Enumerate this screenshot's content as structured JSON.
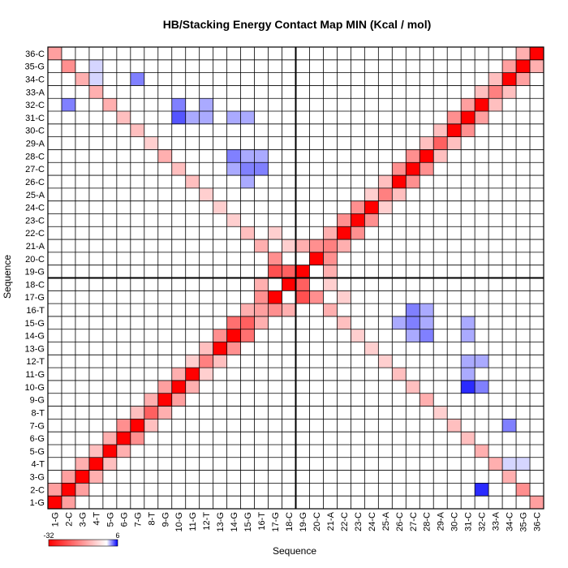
{
  "chart_data": {
    "type": "heatmap",
    "title": "HB/Stacking Energy Contact Map MIN (Kcal / mol)",
    "xlabel": "Sequence",
    "ylabel": "Sequence",
    "labels": [
      "1-G",
      "2-C",
      "3-G",
      "4-T",
      "5-G",
      "6-G",
      "7-G",
      "8-T",
      "9-G",
      "10-G",
      "11-G",
      "12-T",
      "13-G",
      "14-G",
      "15-G",
      "16-T",
      "17-G",
      "18-C",
      "19-G",
      "20-C",
      "21-A",
      "22-C",
      "23-C",
      "24-C",
      "25-A",
      "26-C",
      "27-C",
      "28-C",
      "29-A",
      "30-C",
      "31-C",
      "32-C",
      "33-A",
      "34-C",
      "35-G",
      "36-C"
    ],
    "colorbar": {
      "min": -32,
      "max": 6,
      "min_label": "-32",
      "max_label": "6",
      "low_color": "#ff0000",
      "mid_color": "#ffffff",
      "high_color": "#0000ff"
    },
    "divider_after": 18,
    "grid": true,
    "cells": [
      [
        1,
        1,
        -32
      ],
      [
        2,
        2,
        -32
      ],
      [
        3,
        3,
        -32
      ],
      [
        4,
        4,
        -32
      ],
      [
        5,
        5,
        -32
      ],
      [
        6,
        6,
        -32
      ],
      [
        7,
        7,
        -32
      ],
      [
        8,
        8,
        -20
      ],
      [
        9,
        9,
        -32
      ],
      [
        10,
        10,
        -32
      ],
      [
        11,
        11,
        -32
      ],
      [
        12,
        12,
        -16
      ],
      [
        13,
        13,
        -32
      ],
      [
        14,
        14,
        -32
      ],
      [
        15,
        15,
        -20
      ],
      [
        16,
        16,
        -12
      ],
      [
        17,
        17,
        -32
      ],
      [
        18,
        18,
        -32
      ],
      [
        19,
        19,
        -32
      ],
      [
        20,
        20,
        -32
      ],
      [
        21,
        21,
        -16
      ],
      [
        22,
        22,
        -32
      ],
      [
        23,
        23,
        -32
      ],
      [
        24,
        24,
        -32
      ],
      [
        25,
        25,
        -16
      ],
      [
        26,
        26,
        -32
      ],
      [
        27,
        27,
        -32
      ],
      [
        28,
        28,
        -32
      ],
      [
        29,
        29,
        -20
      ],
      [
        30,
        30,
        -32
      ],
      [
        31,
        31,
        -32
      ],
      [
        32,
        32,
        -32
      ],
      [
        33,
        33,
        -16
      ],
      [
        34,
        34,
        -32
      ],
      [
        35,
        35,
        -32
      ],
      [
        36,
        36,
        -32
      ],
      [
        1,
        2,
        -12
      ],
      [
        2,
        1,
        -12
      ],
      [
        1,
        36,
        -12
      ],
      [
        36,
        1,
        -12
      ],
      [
        2,
        35,
        -14
      ],
      [
        35,
        2,
        -14
      ],
      [
        3,
        34,
        -10
      ],
      [
        34,
        3,
        -10
      ],
      [
        4,
        33,
        -10
      ],
      [
        33,
        4,
        -10
      ],
      [
        5,
        32,
        -10
      ],
      [
        32,
        5,
        -10
      ],
      [
        6,
        31,
        -8
      ],
      [
        31,
        6,
        -8
      ],
      [
        7,
        30,
        -8
      ],
      [
        30,
        7,
        -8
      ],
      [
        8,
        29,
        -6
      ],
      [
        29,
        8,
        -6
      ],
      [
        9,
        28,
        -10
      ],
      [
        28,
        9,
        -10
      ],
      [
        10,
        27,
        -8
      ],
      [
        27,
        10,
        -8
      ],
      [
        11,
        26,
        -8
      ],
      [
        26,
        11,
        -8
      ],
      [
        12,
        25,
        -6
      ],
      [
        25,
        12,
        -6
      ],
      [
        13,
        24,
        -6
      ],
      [
        24,
        13,
        -6
      ],
      [
        14,
        23,
        -6
      ],
      [
        23,
        14,
        -6
      ],
      [
        17,
        20,
        -14
      ],
      [
        20,
        17,
        -14
      ],
      [
        16,
        21,
        -10
      ],
      [
        21,
        16,
        -10
      ],
      [
        15,
        22,
        -8
      ],
      [
        22,
        15,
        -8
      ],
      [
        17,
        22,
        -6
      ],
      [
        18,
        21,
        -6
      ],
      [
        21,
        18,
        -6
      ],
      [
        22,
        17,
        -6
      ],
      [
        16,
        18,
        -10
      ],
      [
        18,
        16,
        -10
      ],
      [
        19,
        21,
        -10
      ],
      [
        21,
        19,
        -10
      ],
      [
        17,
        19,
        -22
      ],
      [
        19,
        17,
        -22
      ],
      [
        16,
        17,
        -14
      ],
      [
        17,
        16,
        -14
      ],
      [
        18,
        19,
        -20
      ],
      [
        19,
        18,
        -20
      ],
      [
        20,
        21,
        -14
      ],
      [
        21,
        20,
        -14
      ],
      [
        21,
        22,
        -10
      ],
      [
        22,
        21,
        -10
      ],
      [
        15,
        16,
        -10
      ],
      [
        16,
        15,
        -10
      ],
      [
        14,
        15,
        -18
      ],
      [
        15,
        14,
        -18
      ],
      [
        13,
        14,
        -14
      ],
      [
        14,
        13,
        -14
      ],
      [
        12,
        13,
        -8
      ],
      [
        13,
        12,
        -8
      ],
      [
        11,
        12,
        -6
      ],
      [
        12,
        11,
        -6
      ],
      [
        10,
        11,
        -10
      ],
      [
        11,
        10,
        -10
      ],
      [
        9,
        10,
        -12
      ],
      [
        10,
        9,
        -12
      ],
      [
        8,
        9,
        -10
      ],
      [
        9,
        8,
        -10
      ],
      [
        7,
        8,
        -8
      ],
      [
        8,
        7,
        -8
      ],
      [
        6,
        7,
        -14
      ],
      [
        7,
        6,
        -14
      ],
      [
        5,
        6,
        -10
      ],
      [
        6,
        5,
        -10
      ],
      [
        4,
        5,
        -8
      ],
      [
        5,
        4,
        -8
      ],
      [
        3,
        4,
        -10
      ],
      [
        4,
        3,
        -10
      ],
      [
        2,
        3,
        -12
      ],
      [
        3,
        2,
        -12
      ],
      [
        22,
        23,
        -14
      ],
      [
        23,
        22,
        -14
      ],
      [
        23,
        24,
        -14
      ],
      [
        24,
        23,
        -14
      ],
      [
        26,
        27,
        -14
      ],
      [
        27,
        26,
        -14
      ],
      [
        27,
        28,
        -14
      ],
      [
        28,
        27,
        -14
      ],
      [
        30,
        31,
        -14
      ],
      [
        31,
        30,
        -14
      ],
      [
        31,
        32,
        -12
      ],
      [
        32,
        31,
        -12
      ],
      [
        34,
        35,
        -12
      ],
      [
        35,
        34,
        -12
      ],
      [
        35,
        36,
        -10
      ],
      [
        36,
        35,
        -10
      ],
      [
        33,
        34,
        -8
      ],
      [
        34,
        33,
        -8
      ],
      [
        32,
        33,
        -8
      ],
      [
        33,
        32,
        -8
      ],
      [
        29,
        30,
        -8
      ],
      [
        30,
        29,
        -8
      ],
      [
        28,
        29,
        -8
      ],
      [
        29,
        28,
        -8
      ],
      [
        25,
        26,
        -8
      ],
      [
        26,
        25,
        -8
      ],
      [
        24,
        25,
        -6
      ],
      [
        25,
        24,
        -6
      ],
      [
        32,
        2,
        5
      ],
      [
        2,
        32,
        3
      ],
      [
        31,
        10,
        5
      ],
      [
        10,
        31,
        4
      ],
      [
        11,
        31,
        2
      ],
      [
        31,
        11,
        2
      ],
      [
        32,
        10,
        3
      ],
      [
        10,
        32,
        3
      ],
      [
        27,
        16,
        3
      ],
      [
        16,
        27,
        3
      ],
      [
        28,
        14,
        3
      ],
      [
        14,
        28,
        3
      ],
      [
        27,
        14,
        2
      ],
      [
        14,
        27,
        2
      ],
      [
        26,
        15,
        2
      ],
      [
        15,
        26,
        2
      ],
      [
        27,
        15,
        3
      ],
      [
        15,
        27,
        3
      ],
      [
        15,
        31,
        2
      ],
      [
        31,
        15,
        2
      ],
      [
        14,
        31,
        2
      ],
      [
        31,
        14,
        2
      ],
      [
        15,
        28,
        2
      ],
      [
        28,
        15,
        2
      ],
      [
        16,
        28,
        2
      ],
      [
        28,
        16,
        2
      ],
      [
        12,
        31,
        2
      ],
      [
        31,
        12,
        2
      ],
      [
        12,
        32,
        2
      ],
      [
        32,
        12,
        2
      ],
      [
        7,
        34,
        3
      ],
      [
        34,
        7,
        3
      ],
      [
        4,
        34,
        1
      ],
      [
        34,
        4,
        1
      ],
      [
        4,
        35,
        1
      ],
      [
        35,
        4,
        1
      ]
    ]
  }
}
